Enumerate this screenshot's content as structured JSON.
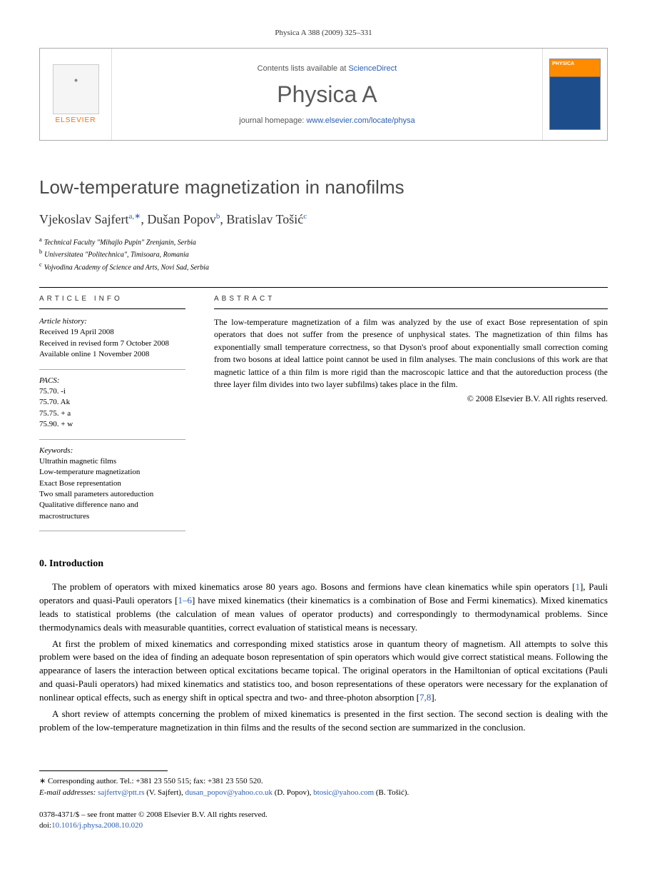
{
  "citation": "Physica A 388 (2009) 325–331",
  "header": {
    "contents_prefix": "Contents lists available at ",
    "contents_link": "ScienceDirect",
    "journal": "Physica A",
    "homepage_prefix": "journal homepage: ",
    "homepage_url": "www.elsevier.com/locate/physa",
    "publisher": "ELSEVIER"
  },
  "title": "Low-temperature magnetization in nanofilms",
  "authors": {
    "a1_name": "Vjekoslav Sajfert",
    "a1_sup": "a,∗",
    "a2_name": "Dušan Popov",
    "a2_sup": "b",
    "a3_name": "Bratislav Tošić",
    "a3_sup": "c"
  },
  "affiliations": {
    "a": "Technical Faculty \"Mihajlo Pupin\" Zrenjanin, Serbia",
    "b": "Universitatea \"Politechnica\", Timisoara, Romania",
    "c": "Vojvodina Academy of Science and Arts, Novi Sad, Serbia"
  },
  "info": {
    "heading": "ARTICLE INFO",
    "history_label": "Article history:",
    "received": "Received 19 April 2008",
    "revised": "Received in revised form 7 October 2008",
    "online": "Available online 1 November 2008",
    "pacs_label": "PACS:",
    "pacs1": "75.70. -i",
    "pacs2": "75.70. Ak",
    "pacs3": "75.75. + a",
    "pacs4": "75.90. + w",
    "keywords_label": "Keywords:",
    "kw1": "Ultrathin magnetic films",
    "kw2": "Low-temperature magnetization",
    "kw3": "Exact Bose representation",
    "kw4": "Two small parameters autoreduction",
    "kw5": "Qualitative difference nano and macrostructures"
  },
  "abstract": {
    "heading": "ABSTRACT",
    "text": "The low-temperature magnetization of a film was analyzed by the use of exact Bose representation of spin operators that does not suffer from the presence of unphysical states. The magnetization of thin films has exponentially small temperature correctness, so that Dyson's proof about exponentially small correction coming from two bosons at ideal lattice point cannot be used in film analyses. The main conclusions of this work are that magnetic lattice of a thin film is more rigid than the macroscopic lattice and that the autoreduction process (the three layer film divides into two layer subfilms) takes place in the film.",
    "copyright": "© 2008 Elsevier B.V. All rights reserved."
  },
  "intro": {
    "heading": "0. Introduction",
    "p1a": "The problem of operators with mixed kinematics arose 80 years ago. Bosons and fermions have clean kinematics while spin operators [",
    "ref1": "1",
    "p1b": "], Pauli operators and quasi-Pauli operators [",
    "ref2": "1–6",
    "p1c": "] have mixed kinematics (their kinematics is a combination of Bose and Fermi kinematics). Mixed kinematics leads to statistical problems (the calculation of mean values of operator products) and correspondingly to thermodynamical problems. Since thermodynamics deals with measurable quantities, correct evaluation of statistical means is necessary.",
    "p2a": "At first the problem of mixed kinematics and corresponding mixed statistics arose in quantum theory of magnetism. All attempts to solve this problem were based on the idea of finding an adequate boson representation of spin operators which would give correct statistical means. Following the appearance of lasers the interaction between optical excitations became topical. The original operators in the Hamiltonian of optical excitations (Pauli and quasi-Pauli operators) had mixed kinematics and statistics too, and boson representations of these operators were necessary for the explanation of nonlinear optical effects, such as energy shift in optical spectra and two- and three-photon absorption [",
    "ref3": "7,8",
    "p2b": "].",
    "p3": "A short review of attempts concerning the problem of mixed kinematics is presented in the first section. The second section is dealing with the problem of the low-temperature magnetization in thin films and the results of the second section are summarized in the conclusion."
  },
  "footer": {
    "corresponding_label": "∗ Corresponding author. Tel.: +381 23 550 515; fax: +381 23 550 520.",
    "email_label": "E-mail addresses:",
    "email1": "sajfertv@ptt.rs",
    "email1_name": "(V. Sajfert),",
    "email2": "dusan_popov@yahoo.co.uk",
    "email2_name": "(D. Popov),",
    "email3": "btosic@yahoo.com",
    "email3_name": "(B. Tošić).",
    "issn": "0378-4371/$ – see front matter © 2008 Elsevier B.V. All rights reserved.",
    "doi_label": "doi:",
    "doi": "10.1016/j.physa.2008.10.020"
  }
}
